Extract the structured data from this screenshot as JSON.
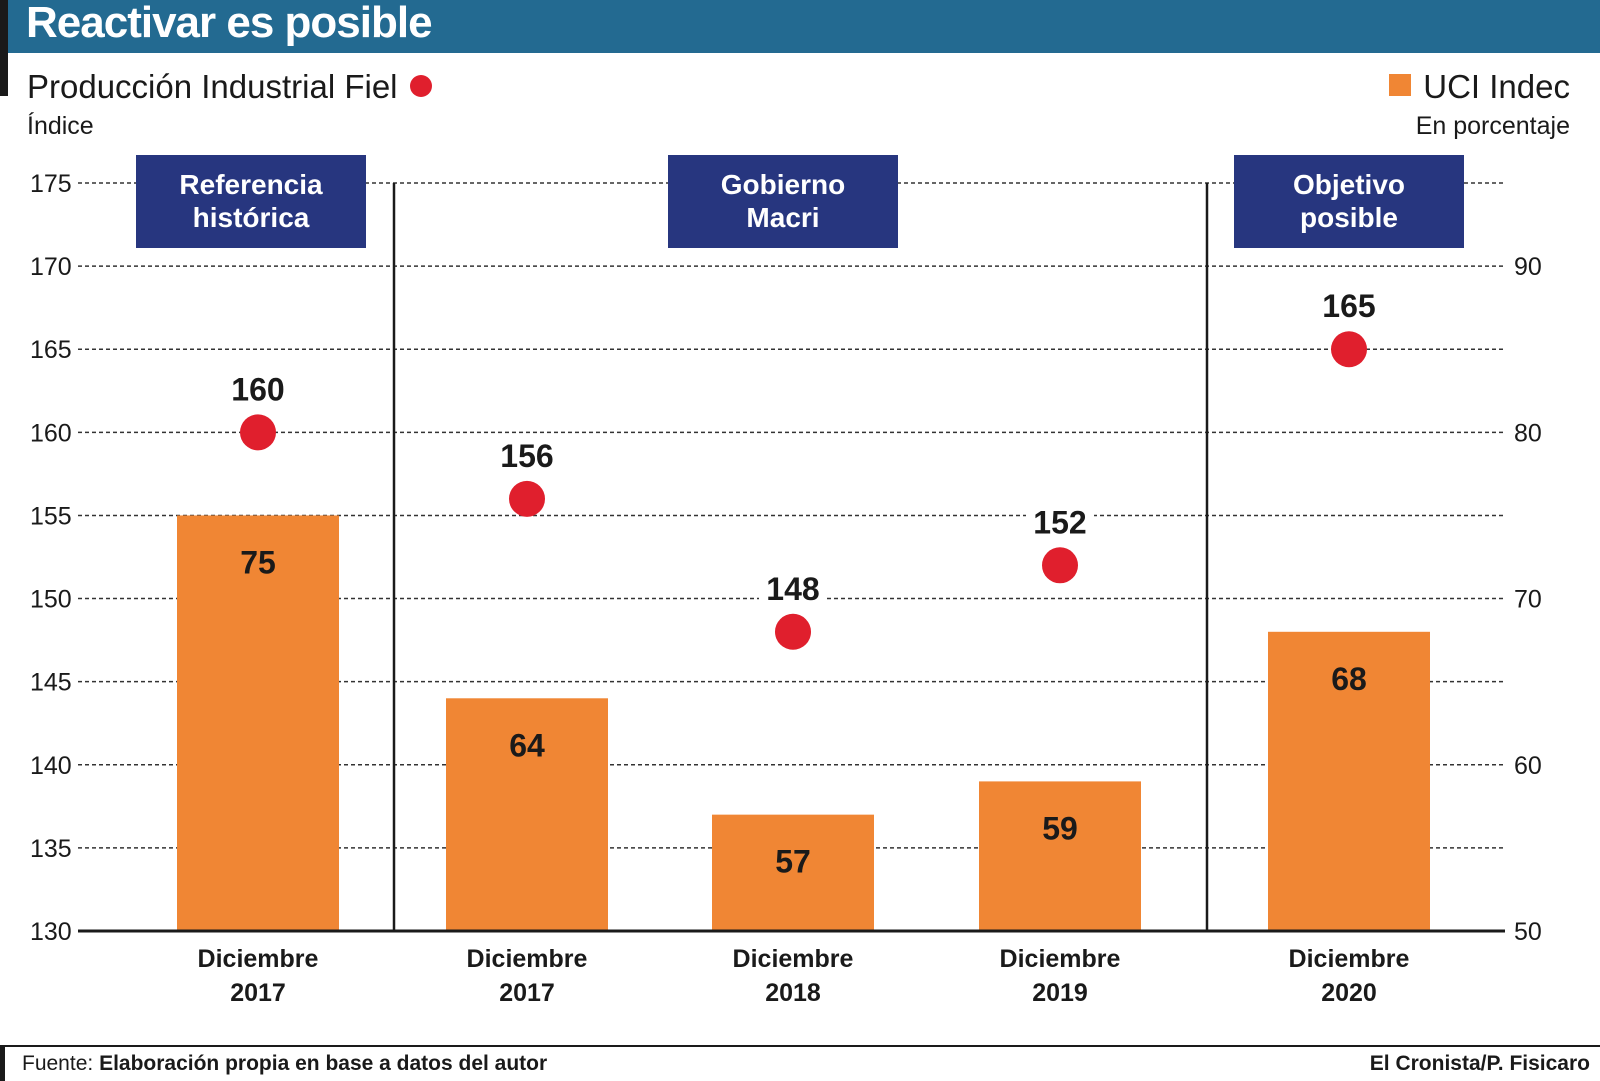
{
  "title": "Reactivar es posible",
  "legend": {
    "left_series": "Producción Industrial Fiel",
    "left_unit": "Índice",
    "right_series": "UCI Indec",
    "right_unit": "En porcentaje"
  },
  "footer": {
    "source_label": "Fuente:",
    "source_text": "Elaboración propia en base a datos del autor",
    "credit": "El Cronista/P. Fisicaro"
  },
  "colors": {
    "header": "#236a91",
    "dot": "#e01f2d",
    "bar": "#f08634",
    "section_box": "#27367f"
  },
  "chart_data": {
    "type": "bar",
    "title": "Reactivar es posible",
    "categories": [
      [
        "Diciembre",
        "2017"
      ],
      [
        "Diciembre",
        "2017"
      ],
      [
        "Diciembre",
        "2018"
      ],
      [
        "Diciembre",
        "2019"
      ],
      [
        "Diciembre",
        "2020"
      ]
    ],
    "series": [
      {
        "name": "UCI Indec",
        "kind": "bar",
        "axis": "right",
        "values": [
          75,
          64,
          57,
          59,
          68
        ]
      },
      {
        "name": "Producción Industrial Fiel",
        "kind": "dot",
        "axis": "left",
        "values": [
          160,
          156,
          148,
          152,
          165
        ]
      }
    ],
    "left_axis": {
      "label": "Índice",
      "ylim": [
        130,
        175
      ],
      "ticks": [
        130,
        135,
        140,
        145,
        150,
        155,
        160,
        165,
        170,
        175
      ]
    },
    "right_axis": {
      "label": "En porcentaje",
      "ylim": [
        50,
        95
      ],
      "ticks": [
        50,
        60,
        70,
        80,
        90
      ]
    },
    "sections": [
      {
        "lines": [
          "Referencia",
          "histórica"
        ],
        "from": 0,
        "to": 0
      },
      {
        "lines": [
          "Gobierno",
          "Macri"
        ],
        "from": 1,
        "to": 3
      },
      {
        "lines": [
          "Objetivo",
          "posible"
        ],
        "from": 4,
        "to": 4
      }
    ],
    "grid": true
  }
}
